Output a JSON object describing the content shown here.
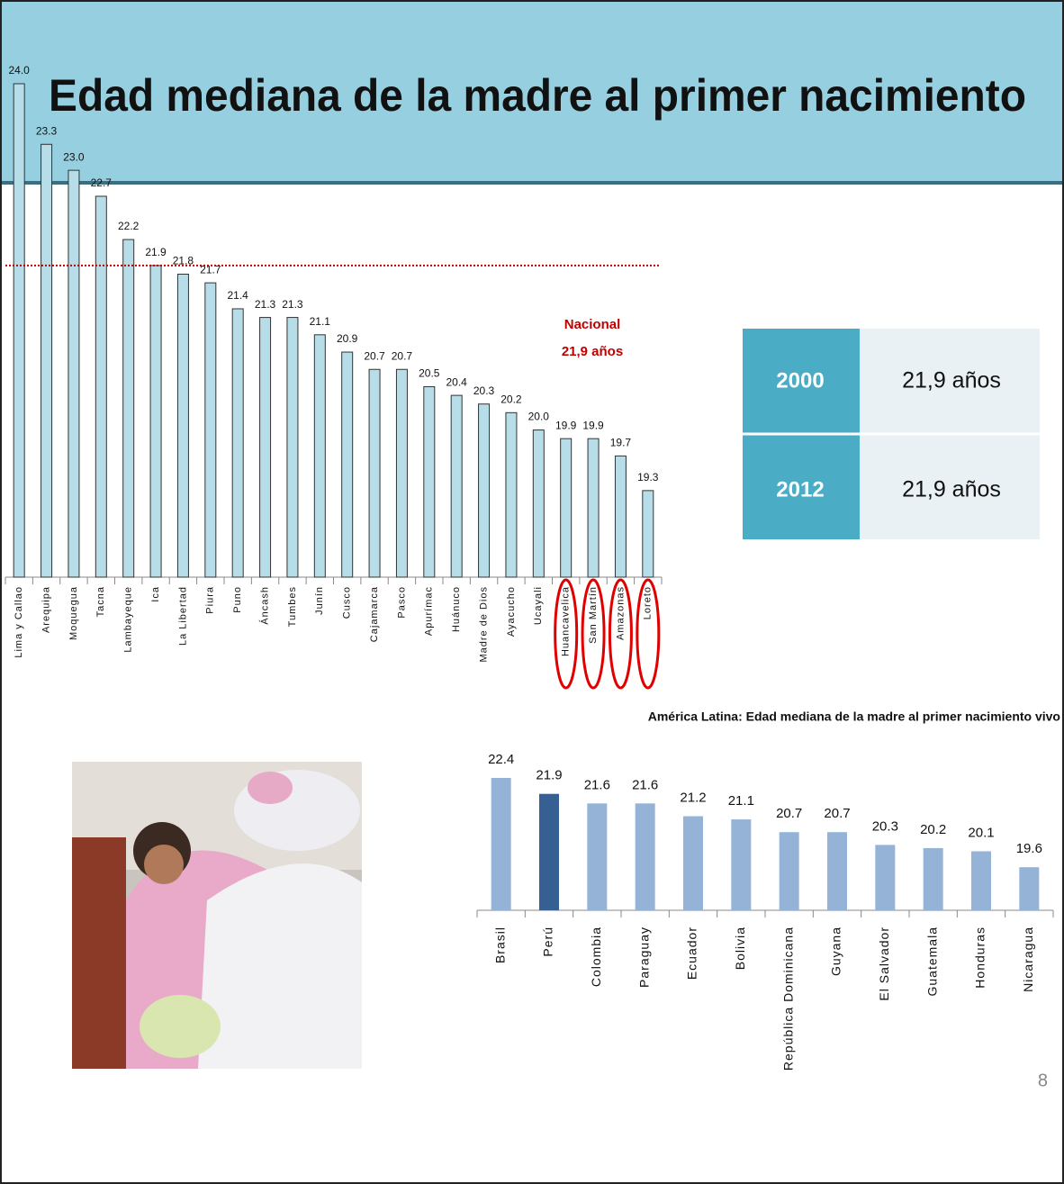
{
  "slide_title": "Edad mediana de la madre al primer nacimiento",
  "table": {
    "rows": [
      [
        "2000",
        "21,9 años"
      ],
      [
        "2012",
        "21,9 años"
      ]
    ]
  },
  "page_number": "8",
  "chart_data": [
    {
      "type": "bar",
      "categories": [
        "Lima y Callao",
        "Arequipa",
        "Moquegua",
        "Tacna",
        "Lambayeque",
        "Ica",
        "La Libertad",
        "Piura",
        "Puno",
        "Áncash",
        "Tumbes",
        "Junín",
        "Cusco",
        "Cajamarca",
        "Pasco",
        "Apurímac",
        "Huánuco",
        "Madre de Dios",
        "Ayacucho",
        "Ucayali",
        "Huancavelica",
        "San Martín",
        "Amazonas",
        "Loreto"
      ],
      "values": [
        24.0,
        23.3,
        23.0,
        22.7,
        22.2,
        21.9,
        21.8,
        21.7,
        21.4,
        21.3,
        21.3,
        21.1,
        20.9,
        20.7,
        20.7,
        20.5,
        20.4,
        20.3,
        20.2,
        20.0,
        19.9,
        19.9,
        19.7,
        19.3
      ],
      "value_labels": [
        "24.0",
        "23.3",
        "23.0",
        "22.7",
        "22.2",
        "21.9",
        "21.8",
        "21.7",
        "21.4",
        "21.3",
        "21.3",
        "21.1",
        "20.9",
        "20.7",
        "20.7",
        "20.5",
        "20.4",
        "20.3",
        "20.2",
        "20.0",
        "19.9",
        "19.9",
        "19.7",
        "19.3"
      ],
      "color": "#b7dde8",
      "ylim": [
        18.3,
        24.0
      ],
      "reference_line": {
        "value": 21.9,
        "color": "#c00000",
        "label": [
          "Nacional",
          "21,9 años"
        ]
      },
      "circled_categories": [
        20,
        21,
        22,
        23
      ]
    },
    {
      "type": "bar",
      "title": "América Latina: Edad mediana de la madre al primer nacimiento vivo",
      "categories": [
        "Brasil",
        "Perú",
        "Colombia",
        "Paraguay",
        "Ecuador",
        "Bolivia",
        "República Dominicana",
        "Guyana",
        "El Salvador",
        "Guatemala",
        "Honduras",
        "Nicaragua"
      ],
      "values": [
        22.4,
        21.9,
        21.6,
        21.6,
        21.2,
        21.1,
        20.7,
        20.7,
        20.3,
        20.2,
        20.1,
        19.6
      ],
      "colors": [
        "#95b3d7",
        "#366092",
        "#95b3d7",
        "#95b3d7",
        "#95b3d7",
        "#95b3d7",
        "#95b3d7",
        "#95b3d7",
        "#95b3d7",
        "#95b3d7",
        "#95b3d7",
        "#95b3d7"
      ],
      "ylim": [
        18.25,
        22.4
      ]
    }
  ]
}
